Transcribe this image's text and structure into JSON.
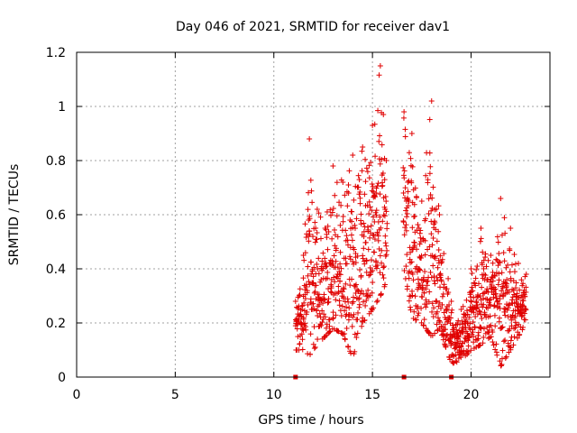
{
  "chart_data": {
    "type": "scatter",
    "title": "Day 046 of 2021, SRMTID for receiver dav1",
    "xlabel": "GPS time / hours",
    "ylabel": "SRMTID / TECUs",
    "xlim": [
      0,
      24
    ],
    "ylim": [
      0,
      1.2
    ],
    "x_ticks": [
      0,
      5,
      10,
      15,
      20
    ],
    "x_tick_labels": [
      "0",
      "5",
      "10",
      "15",
      "20"
    ],
    "y_ticks": [
      0,
      0.2,
      0.4,
      0.6,
      0.8,
      1.0,
      1.2
    ],
    "y_tick_labels": [
      "0",
      "0.2",
      "0.4",
      "0.6",
      "0.8",
      "1",
      "1.2"
    ],
    "grid": true,
    "marker": "plus",
    "series_color": "#e00000",
    "gap_markers_x": [
      11.1,
      16.6,
      19.0
    ],
    "envelope": [
      {
        "x": 11.1,
        "lo": 0.1,
        "hi": 0.28
      },
      {
        "x": 11.5,
        "lo": 0.1,
        "hi": 0.45
      },
      {
        "x": 11.8,
        "lo": 0.08,
        "hi": 0.88
      },
      {
        "x": 12.2,
        "lo": 0.12,
        "hi": 0.62
      },
      {
        "x": 12.6,
        "lo": 0.15,
        "hi": 0.55
      },
      {
        "x": 13.0,
        "lo": 0.18,
        "hi": 0.78
      },
      {
        "x": 13.5,
        "lo": 0.16,
        "hi": 0.72
      },
      {
        "x": 14.0,
        "lo": 0.07,
        "hi": 0.82
      },
      {
        "x": 14.5,
        "lo": 0.2,
        "hi": 0.85
      },
      {
        "x": 15.0,
        "lo": 0.25,
        "hi": 0.93
      },
      {
        "x": 15.4,
        "lo": 0.3,
        "hi": 1.15
      },
      {
        "x": 15.7,
        "lo": 0.35,
        "hi": 0.8
      },
      {
        "x": 16.6,
        "lo": 0.4,
        "hi": 0.98
      },
      {
        "x": 17.0,
        "lo": 0.22,
        "hi": 0.9
      },
      {
        "x": 17.5,
        "lo": 0.2,
        "hi": 0.65
      },
      {
        "x": 18.0,
        "lo": 0.15,
        "hi": 1.02
      },
      {
        "x": 18.4,
        "lo": 0.18,
        "hi": 0.6
      },
      {
        "x": 19.0,
        "lo": 0.05,
        "hi": 0.28
      },
      {
        "x": 19.5,
        "lo": 0.06,
        "hi": 0.25
      },
      {
        "x": 20.0,
        "lo": 0.1,
        "hi": 0.4
      },
      {
        "x": 20.5,
        "lo": 0.12,
        "hi": 0.55
      },
      {
        "x": 21.0,
        "lo": 0.15,
        "hi": 0.45
      },
      {
        "x": 21.5,
        "lo": 0.04,
        "hi": 0.66
      },
      {
        "x": 22.0,
        "lo": 0.1,
        "hi": 0.55
      },
      {
        "x": 22.4,
        "lo": 0.15,
        "hi": 0.42
      },
      {
        "x": 22.8,
        "lo": 0.2,
        "hi": 0.38
      }
    ]
  }
}
